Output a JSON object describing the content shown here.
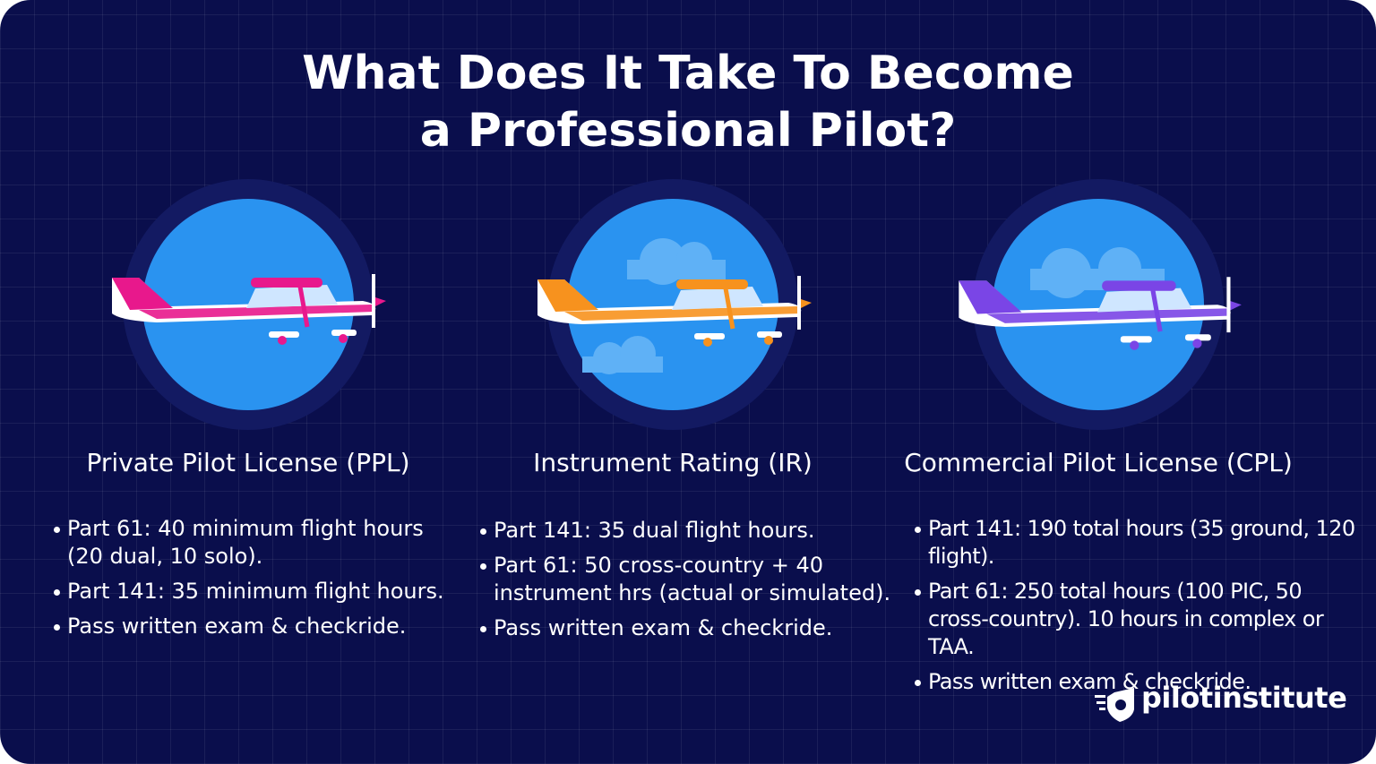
{
  "header": {
    "title_lines": [
      "What Does It Take To Become",
      "a Professional Pilot?"
    ]
  },
  "columns": [
    {
      "name": "Private Pilot License (PPL)",
      "bullets": [
        "Part 61: 40 minimum flight hours (20 dual, 10 solo).",
        "Part 141: 35 minimum flight hours.",
        "Pass written exam & checkride."
      ]
    },
    {
      "name": "Instrument Rating (IR)",
      "bullets": [
        "Part 141: 35 dual flight hours.",
        "Part 61: 50 cross-country + 40 instrument hrs (actual or simulated).",
        "Pass written exam & checkride."
      ]
    },
    {
      "name": "Commercial Pilot License (CPL)",
      "bullets": [
        "Part 141: 190 total hours (35 ground, 120 flight).",
        "Part 61: 250 total hours (100 PIC, 50 cross-country). 10 hours in complex or TAA.",
        "Pass written exam & checkride."
      ]
    }
  ],
  "brand": "pilotinstitute"
}
